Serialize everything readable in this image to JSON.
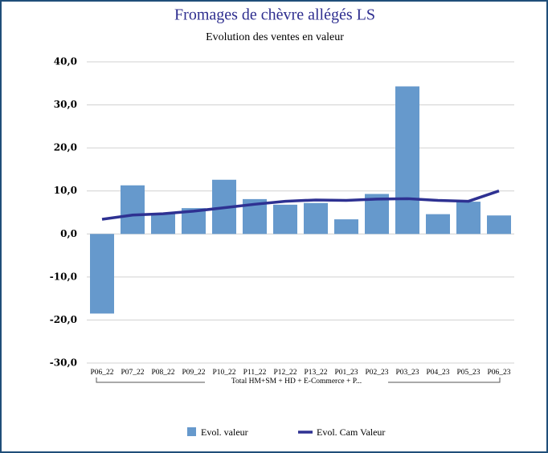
{
  "chart_data": {
    "type": "bar+line",
    "title": "Fromages de chèvre allégés LS",
    "subtitle": "Evolution des ventes en valeur",
    "categories": [
      "P06_22",
      "P07_22",
      "P08_22",
      "P09_22",
      "P10_22",
      "P11_22",
      "P12_22",
      "P13_22",
      "P01_23",
      "P02_23",
      "P03_23",
      "P04_23",
      "P05_23",
      "P06_23"
    ],
    "group_label": "Total HM+SM + HD + E-Commerce + P...",
    "series": [
      {
        "name": "Evol.  valeur",
        "type": "bar",
        "color": "#6699cc",
        "values": [
          -18.5,
          11.3,
          4.8,
          6.0,
          12.6,
          8.1,
          6.8,
          7.2,
          3.4,
          9.3,
          34.3,
          4.6,
          7.5,
          4.3
        ]
      },
      {
        "name": "Evol. Cam Valeur",
        "type": "line",
        "color": "#2e3192",
        "values": [
          3.4,
          4.4,
          4.7,
          5.3,
          6.1,
          6.9,
          7.6,
          7.9,
          7.8,
          8.1,
          8.2,
          7.8,
          7.6,
          10.0
        ]
      }
    ],
    "ylim": [
      -30,
      40
    ],
    "yticks": [
      {
        "value": -30,
        "label": "-30,0"
      },
      {
        "value": -20,
        "label": "-20,0"
      },
      {
        "value": -10,
        "label": "-10,0"
      },
      {
        "value": 0,
        "label": "0,0"
      },
      {
        "value": 10,
        "label": "10,0"
      },
      {
        "value": 20,
        "label": "20,0"
      },
      {
        "value": 30,
        "label": "30,0"
      },
      {
        "value": 40,
        "label": "40,0"
      }
    ],
    "grid": true
  }
}
